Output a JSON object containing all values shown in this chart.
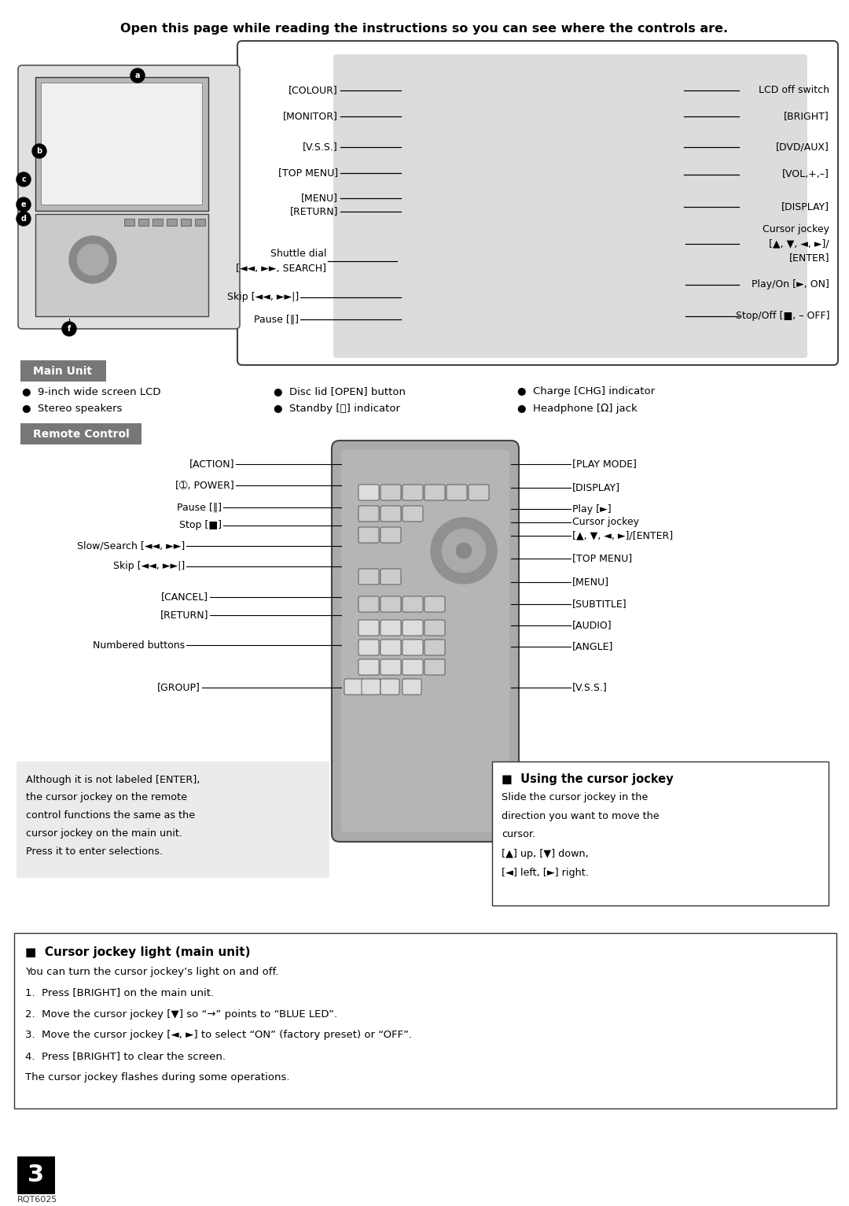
{
  "title": "Open this page while reading the instructions so you can see where the controls are.",
  "bg_color": "#ffffff",
  "page_number": "3",
  "rqt_code": "RQT6025",
  "main_unit_header": "Main Unit",
  "remote_control_header": "Remote Control",
  "device_labels_left": [
    "[COLOUR]",
    "[MONITOR]",
    "[V.S.S.]",
    "[TOP MENU]",
    "[MENU]",
    "[RETURN]"
  ],
  "device_labels_right": [
    "LCD off switch",
    "[BRIGHT]",
    "[DVD/AUX]",
    "[VOL,+,–]",
    "[DISPLAY]"
  ],
  "note_lines": [
    "Although it is not labeled [ENTER],",
    "the cursor jockey on the remote",
    "control functions the same as the",
    "cursor jockey on the main unit.",
    "Press it to enter selections."
  ],
  "using_cursor_title": "■  Using the cursor jockey",
  "using_cursor_lines": [
    "Slide the cursor jockey in the",
    "direction you want to move the",
    "cursor.",
    "[▲] up, [▼] down,",
    "[◄] left, [►] right."
  ],
  "cursor_light_title": "■  Cursor jockey light (main unit)",
  "cursor_light_lines": [
    "You can turn the cursor jockey’s light on and off.",
    "1.  Press [BRIGHT] on the main unit.",
    "2.  Move the cursor jockey [▼] so “→” points to “BLUE LED”.",
    "3.  Move the cursor jockey [◄, ►] to select “ON” (factory preset) or “OFF”.",
    "4.  Press [BRIGHT] to clear the screen.",
    "The cursor jockey flashes during some operations."
  ]
}
